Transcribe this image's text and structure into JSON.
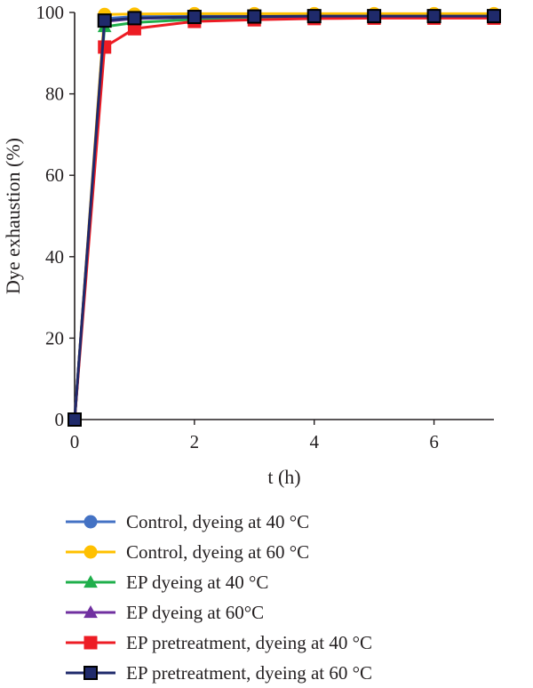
{
  "chart_data": {
    "type": "line",
    "xlabel": "t (h)",
    "ylabel": "Dye exhaustion (%)",
    "xlim": [
      0,
      7
    ],
    "ylim": [
      0,
      100
    ],
    "xticks": [
      0,
      2,
      4,
      6
    ],
    "yticks": [
      0,
      20,
      40,
      60,
      80,
      100
    ],
    "grid": false,
    "legend_position": "bottom",
    "series": [
      {
        "name": "Control, dyeing at 40 °C",
        "color": "#4472C4",
        "marker": "circle",
        "x": [
          0,
          0.5,
          1,
          2,
          3,
          4,
          5,
          6,
          7
        ],
        "y": [
          0,
          98.5,
          99,
          99.2,
          99.3,
          99.3,
          99.4,
          99.4,
          99.4
        ]
      },
      {
        "name": "Control, dyeing at 60 °C",
        "color": "#FFC000",
        "marker": "circle",
        "x": [
          0,
          0.5,
          1,
          2,
          3,
          4,
          5,
          6,
          7
        ],
        "y": [
          0,
          99.5,
          99.6,
          99.7,
          99.7,
          99.7,
          99.7,
          99.7,
          99.7
        ]
      },
      {
        "name": "EP dyeing at 40 °C",
        "color": "#1FAF4B",
        "marker": "triangle",
        "x": [
          0,
          0.5,
          1,
          2,
          3,
          4,
          5,
          6,
          7
        ],
        "y": [
          0,
          96.5,
          97.5,
          98.3,
          98.8,
          99,
          99,
          99,
          99
        ]
      },
      {
        "name": "EP dyeing at 60°C",
        "color": "#7030A0",
        "marker": "triangle",
        "x": [
          0,
          0.5,
          1,
          2,
          3,
          4,
          5,
          6,
          7
        ],
        "y": [
          0,
          97.8,
          98.5,
          98.8,
          99,
          99,
          99,
          99,
          99
        ]
      },
      {
        "name": "EP pretreatment, dyeing at 40 °C",
        "color": "#ED1C24",
        "marker": "square",
        "x": [
          0,
          0.5,
          1,
          2,
          3,
          4,
          5,
          6,
          7
        ],
        "y": [
          0,
          91.5,
          96,
          97.8,
          98.2,
          98.5,
          98.6,
          98.6,
          98.6
        ]
      },
      {
        "name": "EP pretreatment, dyeing at 60 °C",
        "color": "#1F2A6B",
        "marker": "square",
        "edge_color": "#000000",
        "x": [
          0,
          0.5,
          1,
          2,
          3,
          4,
          5,
          6,
          7
        ],
        "y": [
          0,
          98,
          98.6,
          98.9,
          99,
          99.1,
          99.1,
          99.1,
          99.1
        ]
      }
    ]
  }
}
